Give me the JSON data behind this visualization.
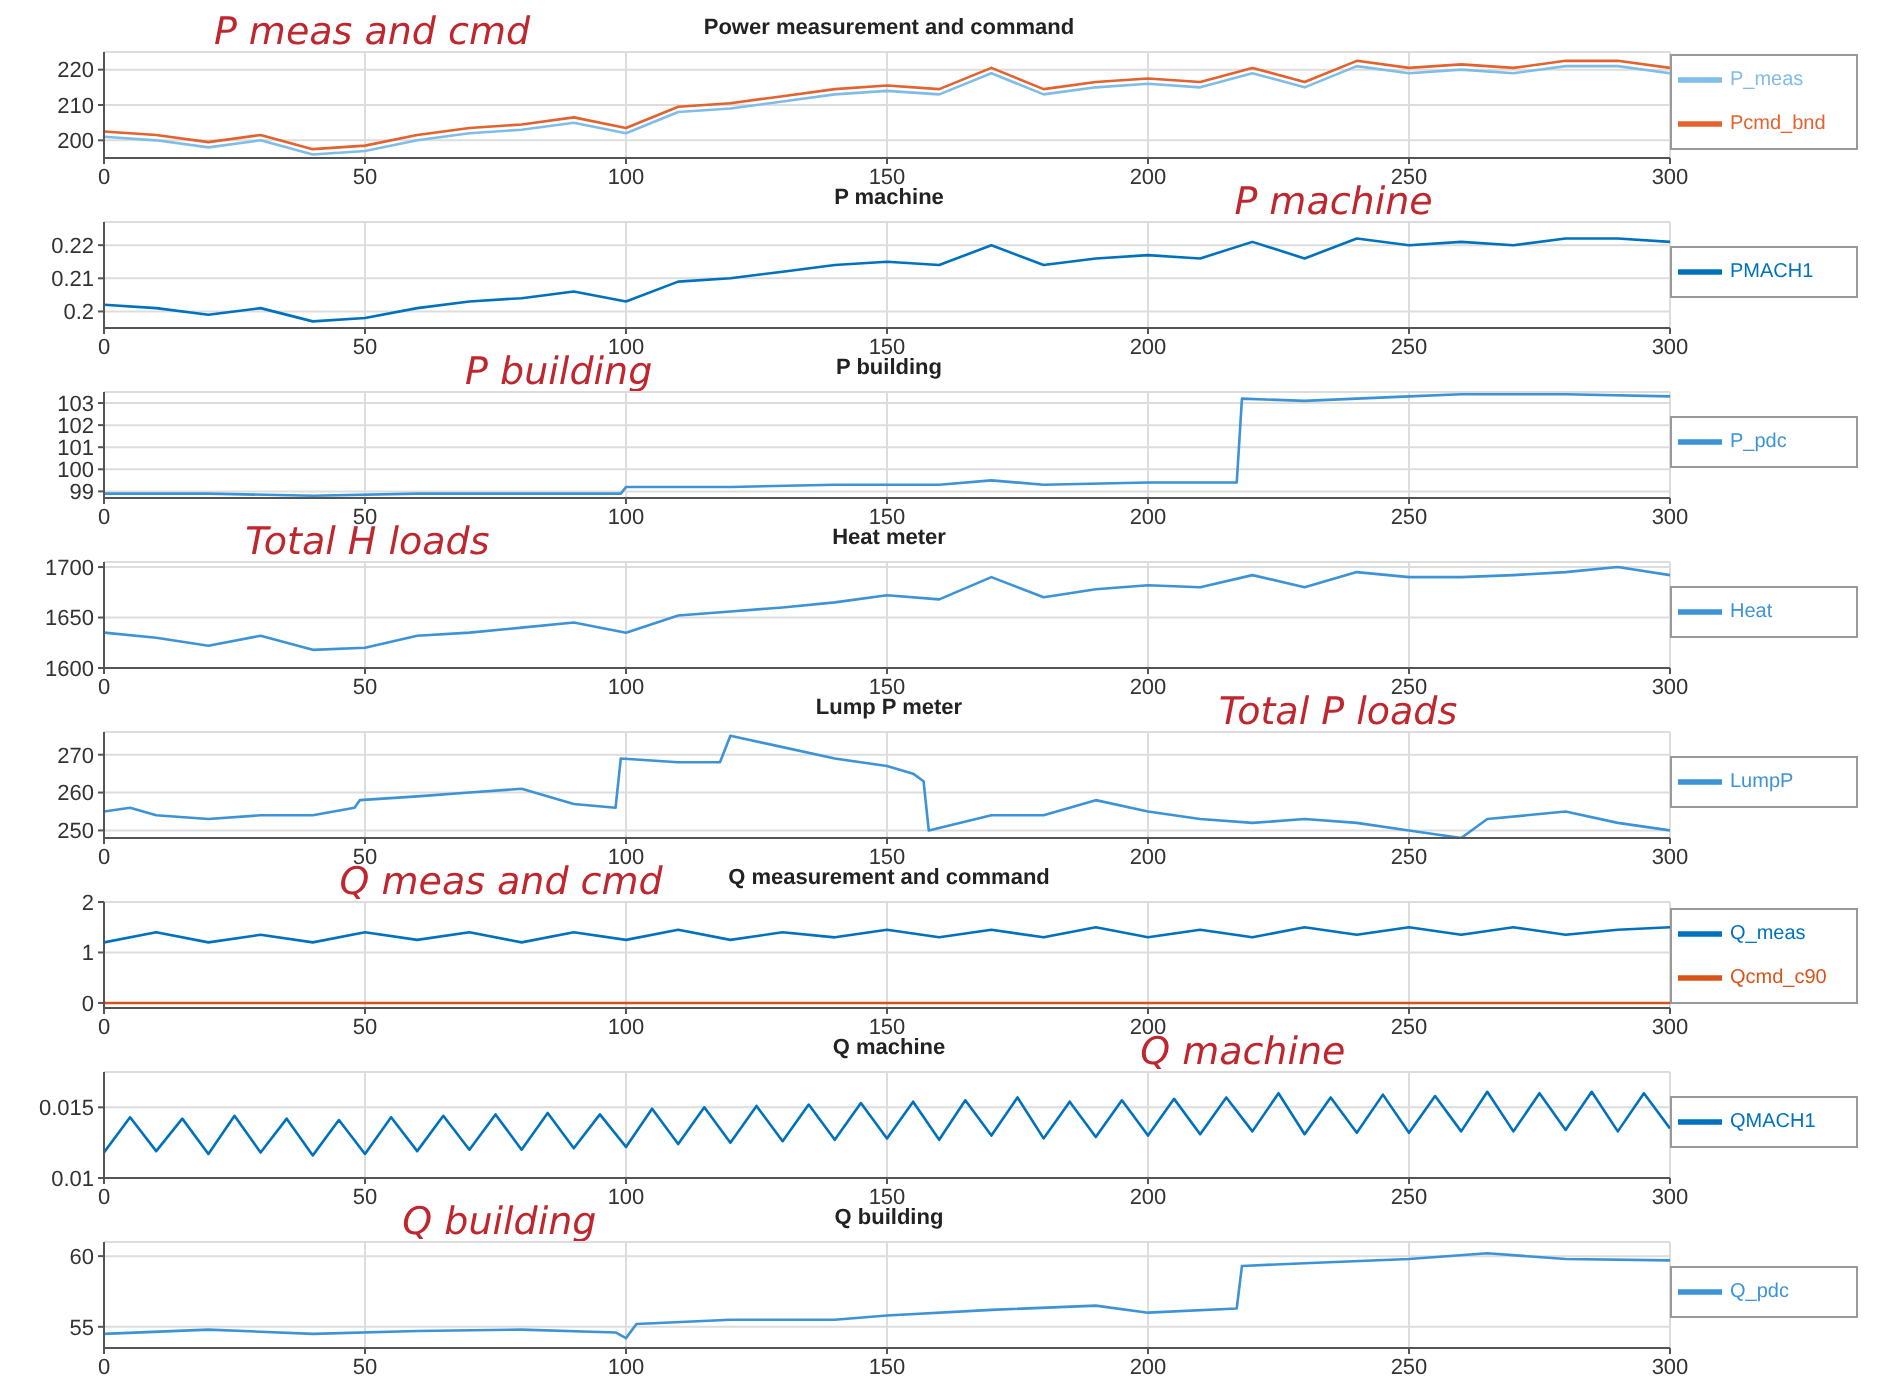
{
  "chart_data": [
    {
      "type": "line",
      "title": "Power measurement and command",
      "annotations": [
        "P meas and cmd"
      ],
      "grid": true,
      "legend": "right",
      "xlim": [
        0,
        300
      ],
      "xticks": [
        0,
        50,
        100,
        150,
        200,
        250,
        300
      ],
      "ylim": [
        195,
        225
      ],
      "yticks": [
        200,
        210,
        220
      ],
      "x": [
        0,
        10,
        20,
        30,
        40,
        50,
        60,
        70,
        80,
        90,
        100,
        110,
        120,
        130,
        140,
        150,
        160,
        170,
        180,
        190,
        200,
        210,
        220,
        230,
        240,
        250,
        260,
        270,
        280,
        290,
        300
      ],
      "series": [
        {
          "name": "P_meas",
          "color": "#7fbce6",
          "values": [
            201,
            200,
            198,
            200,
            196,
            197,
            200,
            202,
            203,
            205,
            202,
            208,
            209,
            211,
            213,
            214,
            213,
            219,
            213,
            215,
            216,
            215,
            219,
            215,
            221,
            219,
            220,
            219,
            221,
            221,
            219
          ]
        },
        {
          "name": "Pcmd_bnd",
          "color": "#e4622d",
          "values": [
            202.5,
            201.5,
            199.5,
            201.5,
            197.5,
            198.5,
            201.5,
            203.5,
            204.5,
            206.5,
            203.5,
            209.5,
            210.5,
            212.5,
            214.5,
            215.5,
            214.5,
            220.5,
            214.5,
            216.5,
            217.5,
            216.5,
            220.5,
            216.5,
            222.5,
            220.5,
            221.5,
            220.5,
            222.5,
            222.5,
            220.5
          ]
        }
      ]
    },
    {
      "type": "line",
      "title": "P machine",
      "annotations": [
        "P machine"
      ],
      "grid": true,
      "legend": "right",
      "xlim": [
        0,
        300
      ],
      "xticks": [
        0,
        50,
        100,
        150,
        200,
        250,
        300
      ],
      "ylim": [
        0.195,
        0.227
      ],
      "yticks": [
        0.2,
        0.21,
        0.22
      ],
      "x": [
        0,
        10,
        20,
        30,
        40,
        50,
        60,
        70,
        80,
        90,
        100,
        110,
        120,
        130,
        140,
        150,
        160,
        170,
        180,
        190,
        200,
        210,
        220,
        230,
        240,
        250,
        260,
        270,
        280,
        290,
        300
      ],
      "series": [
        {
          "name": "PMACH1",
          "color": "#0072bd",
          "values": [
            0.202,
            0.201,
            0.199,
            0.201,
            0.197,
            0.198,
            0.201,
            0.203,
            0.204,
            0.206,
            0.203,
            0.209,
            0.21,
            0.212,
            0.214,
            0.215,
            0.214,
            0.22,
            0.214,
            0.216,
            0.217,
            0.216,
            0.221,
            0.216,
            0.222,
            0.22,
            0.221,
            0.22,
            0.222,
            0.222,
            0.221
          ]
        }
      ]
    },
    {
      "type": "line",
      "title": "P building",
      "annotations": [
        "P building"
      ],
      "grid": true,
      "legend": "right",
      "xlim": [
        0,
        300
      ],
      "xticks": [
        0,
        50,
        100,
        150,
        200,
        250,
        300
      ],
      "ylim": [
        98.7,
        103.5
      ],
      "yticks": [
        99,
        100,
        101,
        102,
        103
      ],
      "series": [
        {
          "name": "P_pdc",
          "color": "#3d93d6",
          "x": [
            0,
            20,
            40,
            60,
            80,
            99,
            100,
            120,
            140,
            160,
            170,
            180,
            200,
            217,
            218,
            230,
            250,
            260,
            280,
            300
          ],
          "values": [
            98.9,
            98.9,
            98.8,
            98.9,
            98.9,
            98.9,
            99.2,
            99.2,
            99.3,
            99.3,
            99.5,
            99.3,
            99.4,
            99.4,
            103.2,
            103.1,
            103.3,
            103.4,
            103.4,
            103.3
          ]
        }
      ]
    },
    {
      "type": "line",
      "title": "Heat meter",
      "annotations": [
        "Total H loads"
      ],
      "grid": true,
      "legend": "right",
      "xlim": [
        0,
        300
      ],
      "xticks": [
        0,
        50,
        100,
        150,
        200,
        250,
        300
      ],
      "ylim": [
        1600,
        1705
      ],
      "yticks": [
        1600,
        1650,
        1700
      ],
      "x": [
        0,
        10,
        20,
        30,
        40,
        50,
        60,
        70,
        80,
        90,
        100,
        110,
        120,
        130,
        140,
        150,
        160,
        170,
        180,
        190,
        200,
        210,
        220,
        230,
        240,
        250,
        260,
        270,
        280,
        290,
        300
      ],
      "series": [
        {
          "name": "Heat",
          "color": "#3d93d6",
          "values": [
            1635,
            1630,
            1622,
            1632,
            1618,
            1620,
            1632,
            1635,
            1640,
            1645,
            1635,
            1652,
            1656,
            1660,
            1665,
            1672,
            1668,
            1690,
            1670,
            1678,
            1682,
            1680,
            1692,
            1680,
            1695,
            1690,
            1690,
            1692,
            1695,
            1700,
            1692
          ]
        }
      ]
    },
    {
      "type": "line",
      "title": "Lump P meter",
      "annotations": [
        "Total P loads"
      ],
      "grid": true,
      "legend": "right",
      "xlim": [
        0,
        300
      ],
      "xticks": [
        0,
        50,
        100,
        150,
        200,
        250,
        300
      ],
      "ylim": [
        248,
        276
      ],
      "yticks": [
        250,
        260,
        270
      ],
      "series": [
        {
          "name": "LumpP",
          "color": "#3d93d6",
          "x": [
            0,
            5,
            10,
            20,
            30,
            40,
            48,
            49,
            60,
            70,
            80,
            90,
            98,
            99,
            110,
            118,
            120,
            130,
            140,
            150,
            155,
            157,
            158,
            170,
            180,
            190,
            200,
            210,
            220,
            230,
            240,
            250,
            260,
            265,
            280,
            290,
            300
          ],
          "values": [
            255,
            256,
            254,
            253,
            254,
            254,
            256,
            258,
            259,
            260,
            261,
            257,
            256,
            269,
            268,
            268,
            275,
            272,
            269,
            267,
            265,
            263,
            250,
            254,
            254,
            258,
            255,
            253,
            252,
            253,
            252,
            250,
            248,
            253,
            255,
            252,
            250
          ]
        }
      ]
    },
    {
      "type": "line",
      "title": "Q measurement and command",
      "annotations": [
        "Q meas and cmd"
      ],
      "grid": true,
      "legend": "bottom right",
      "xlim": [
        0,
        300
      ],
      "xticks": [
        0,
        50,
        100,
        150,
        200,
        250,
        300
      ],
      "ylim": [
        -0.1,
        2
      ],
      "yticks": [
        0,
        1,
        2
      ],
      "x": [
        0,
        10,
        20,
        30,
        40,
        50,
        60,
        70,
        80,
        90,
        100,
        110,
        120,
        130,
        140,
        150,
        160,
        170,
        180,
        190,
        200,
        210,
        220,
        230,
        240,
        250,
        260,
        270,
        280,
        290,
        300
      ],
      "series": [
        {
          "name": "Q_meas",
          "color": "#0072bd",
          "values": [
            1.2,
            1.4,
            1.2,
            1.35,
            1.2,
            1.4,
            1.25,
            1.4,
            1.2,
            1.4,
            1.25,
            1.45,
            1.25,
            1.4,
            1.3,
            1.45,
            1.3,
            1.45,
            1.3,
            1.5,
            1.3,
            1.45,
            1.3,
            1.5,
            1.35,
            1.5,
            1.35,
            1.5,
            1.35,
            1.45,
            1.5
          ]
        },
        {
          "name": "Qcmd_c90",
          "color": "#d95319",
          "values": [
            0,
            0,
            0,
            0,
            0,
            0,
            0,
            0,
            0,
            0,
            0,
            0,
            0,
            0,
            0,
            0,
            0,
            0,
            0,
            0,
            0,
            0,
            0,
            0,
            0,
            0,
            0,
            0,
            0,
            0,
            0
          ]
        }
      ]
    },
    {
      "type": "line",
      "title": "Q machine",
      "annotations": [
        "Q machine"
      ],
      "grid": true,
      "legend": "right",
      "xlim": [
        0,
        300
      ],
      "xticks": [
        0,
        50,
        100,
        150,
        200,
        250,
        300
      ],
      "ylim": [
        0.01,
        0.0175
      ],
      "yticks": [
        0.01,
        0.015
      ],
      "x": [
        0,
        5,
        10,
        15,
        20,
        25,
        30,
        35,
        40,
        45,
        50,
        55,
        60,
        65,
        70,
        75,
        80,
        85,
        90,
        95,
        100,
        105,
        110,
        115,
        120,
        125,
        130,
        135,
        140,
        145,
        150,
        155,
        160,
        165,
        170,
        175,
        180,
        185,
        190,
        195,
        200,
        205,
        210,
        215,
        220,
        225,
        230,
        235,
        240,
        245,
        250,
        255,
        260,
        265,
        270,
        275,
        280,
        285,
        290,
        295,
        300
      ],
      "series": [
        {
          "name": "QMACH1",
          "color": "#0072bd",
          "values": [
            0.0118,
            0.0143,
            0.0119,
            0.0142,
            0.0117,
            0.0144,
            0.0118,
            0.0142,
            0.0116,
            0.0141,
            0.0117,
            0.0143,
            0.0119,
            0.0144,
            0.012,
            0.0145,
            0.012,
            0.0146,
            0.0121,
            0.0145,
            0.0122,
            0.0149,
            0.0124,
            0.015,
            0.0125,
            0.0151,
            0.0126,
            0.0152,
            0.0127,
            0.0153,
            0.0128,
            0.0154,
            0.0127,
            0.0155,
            0.013,
            0.0157,
            0.0128,
            0.0154,
            0.0129,
            0.0155,
            0.013,
            0.0156,
            0.0131,
            0.0157,
            0.0133,
            0.016,
            0.0131,
            0.0157,
            0.0132,
            0.0159,
            0.0132,
            0.0158,
            0.0133,
            0.0161,
            0.0133,
            0.016,
            0.0134,
            0.0161,
            0.0133,
            0.016,
            0.0135
          ]
        }
      ]
    },
    {
      "type": "line",
      "title": "Q building",
      "annotations": [
        "Q building"
      ],
      "grid": true,
      "legend": "right",
      "xlim": [
        0,
        300
      ],
      "xticks": [
        0,
        50,
        100,
        150,
        200,
        250,
        300
      ],
      "ylim": [
        53.5,
        61
      ],
      "yticks": [
        55,
        60
      ],
      "series": [
        {
          "name": "Q_pdc",
          "color": "#3d93d6",
          "x": [
            0,
            20,
            40,
            60,
            80,
            98,
            100,
            102,
            120,
            140,
            150,
            170,
            190,
            200,
            217,
            218,
            230,
            250,
            265,
            280,
            300
          ],
          "values": [
            54.5,
            54.8,
            54.5,
            54.7,
            54.8,
            54.6,
            54.2,
            55.2,
            55.5,
            55.5,
            55.8,
            56.2,
            56.5,
            56,
            56.3,
            59.3,
            59.5,
            59.8,
            60.2,
            59.8,
            59.7
          ]
        }
      ]
    }
  ]
}
